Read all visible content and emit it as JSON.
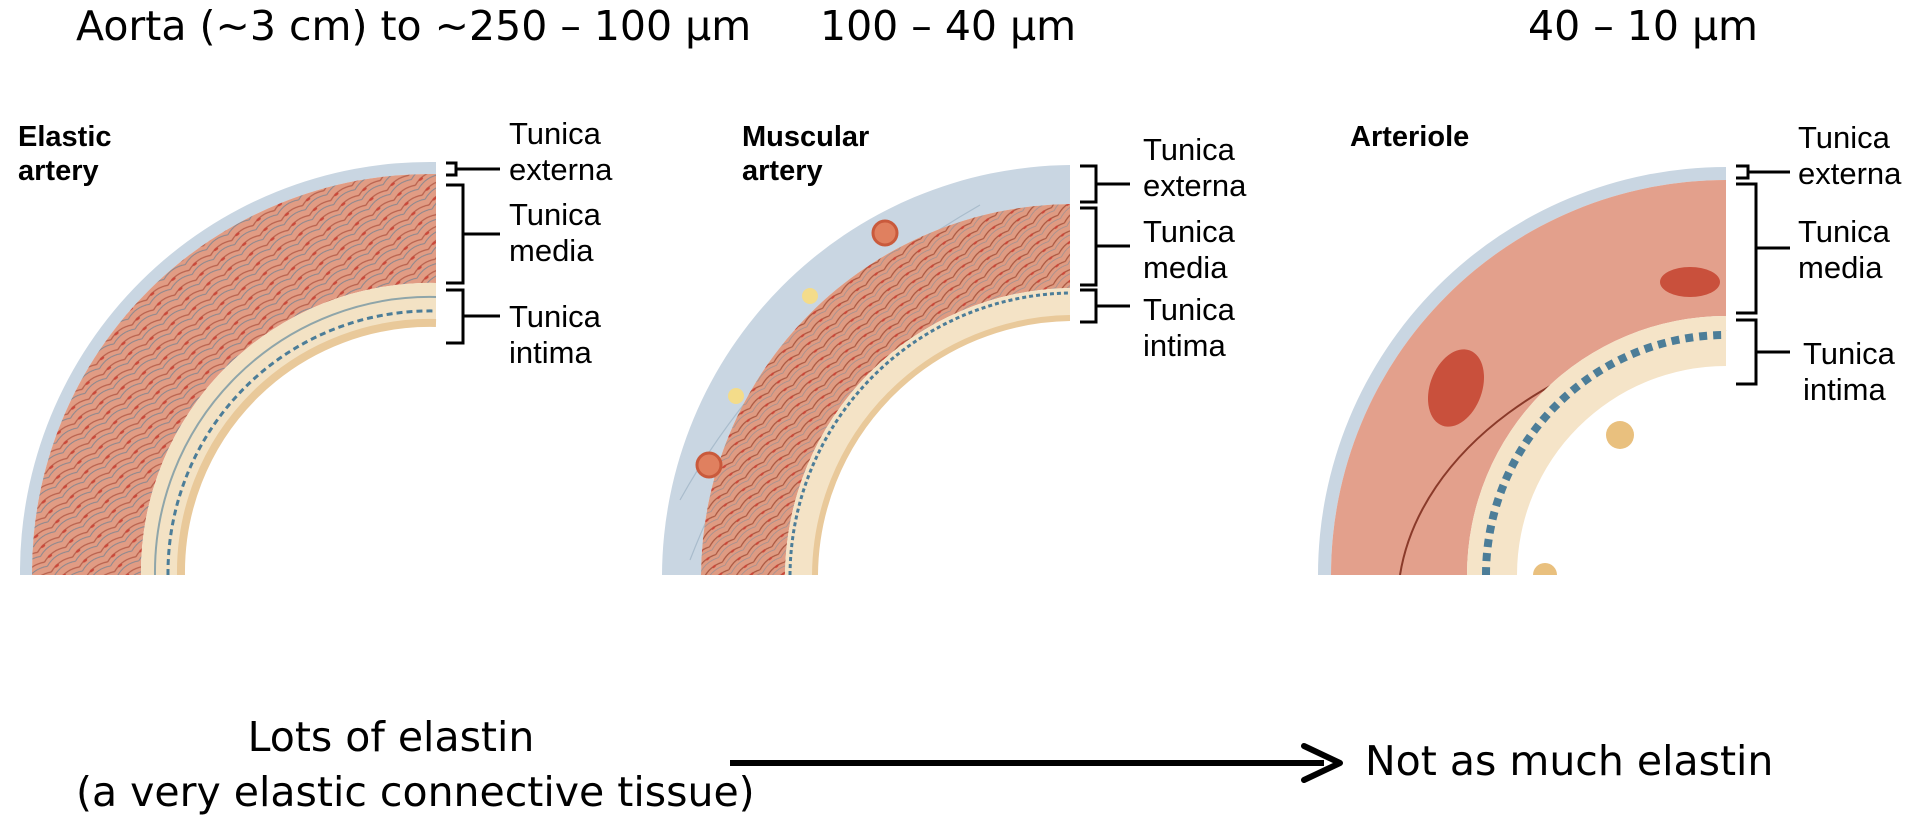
{
  "headers": {
    "elastic": "Aorta (~3 cm) to ~250 – 100 µm",
    "muscular": "100 – 40 µm",
    "arteriole": "40 – 10 µm"
  },
  "panels": {
    "elastic": {
      "title_line1": "Elastic",
      "title_line2": "artery",
      "labels": {
        "externa_1": "Tunica",
        "externa_2": "externa",
        "media_1": "Tunica",
        "media_2": "media",
        "intima_1": "Tunica",
        "intima_2": "intima"
      }
    },
    "muscular": {
      "title_line1": "Muscular",
      "title_line2": "artery",
      "labels": {
        "externa_1": "Tunica",
        "externa_2": "externa",
        "media_1": "Tunica",
        "media_2": "media",
        "intima_1": "Tunica",
        "intima_2": "intima"
      }
    },
    "arteriole": {
      "title_line1": "Arteriole",
      "labels": {
        "externa_1": "Tunica",
        "externa_2": "externa",
        "media_1": "Tunica",
        "media_2": "media",
        "intima_1": "Tunica",
        "intima_2": "intima"
      }
    }
  },
  "bottom": {
    "left_line1": "Lots of elastin",
    "left_line2": "(a very elastic connective tissue)",
    "right": "Not as much elastin"
  },
  "colors": {
    "externa": "#c9d6e2",
    "media": "#e0a08a",
    "muscle_line": "#a85a48",
    "elastin": "#4c7d98",
    "intima": "#f4e3c6",
    "intima_edge": "#e9c99a",
    "nucleus": "#c8503c"
  }
}
